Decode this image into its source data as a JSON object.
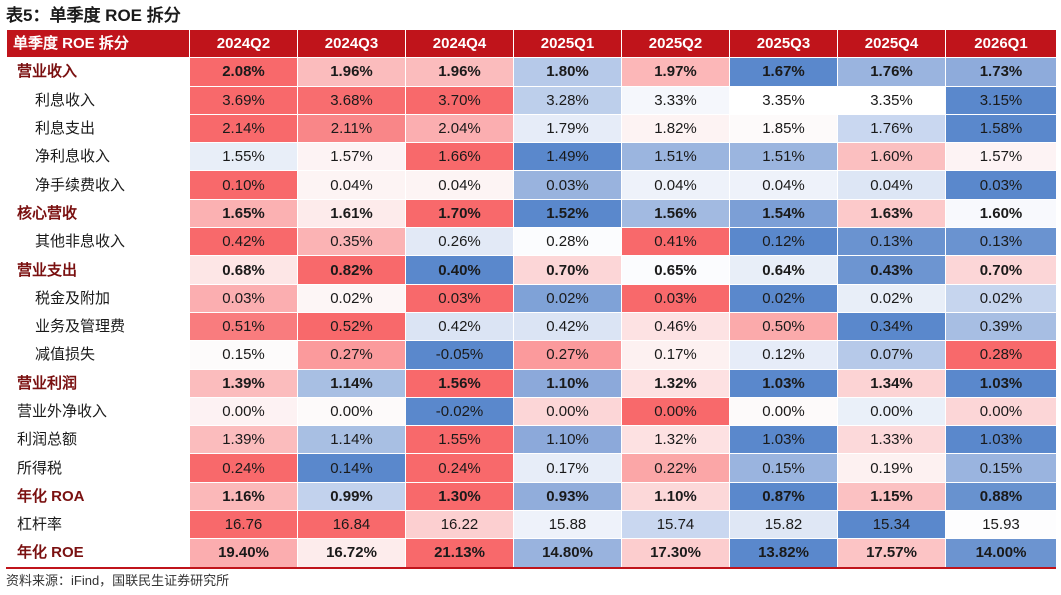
{
  "title": "表5：单季度 ROE 拆分",
  "header": {
    "corner": "单季度 ROE 拆分",
    "periods": [
      "2024Q2",
      "2024Q3",
      "2024Q4",
      "2025Q1",
      "2025Q2",
      "2025Q3",
      "2025Q4",
      "2026Q1"
    ]
  },
  "colors": {
    "header_red": "#c0141b",
    "label_dark_red": "#7a1010"
  },
  "rows": [
    {
      "label": "营业收入",
      "style": "bold",
      "values": [
        "2.08%",
        "1.96%",
        "1.96%",
        "1.80%",
        "1.97%",
        "1.67%",
        "1.76%",
        "1.73%"
      ],
      "colors": [
        "#f8696b",
        "#fbbcbd",
        "#fbbcbd",
        "#b6c9e9",
        "#fcb7b8",
        "#5a88cc",
        "#9ab4df",
        "#8eabdb"
      ]
    },
    {
      "label": "利息收入",
      "style": "sub",
      "values": [
        "3.69%",
        "3.68%",
        "3.70%",
        "3.28%",
        "3.33%",
        "3.35%",
        "3.35%",
        "3.15%"
      ],
      "colors": [
        "#f8696b",
        "#f86d6f",
        "#f8696b",
        "#bdcfeb",
        "#f5f7fc",
        "#ffffff",
        "#ffffff",
        "#5a88cc"
      ]
    },
    {
      "label": "利息支出",
      "style": "sub",
      "values": [
        "2.14%",
        "2.11%",
        "2.04%",
        "1.79%",
        "1.82%",
        "1.85%",
        "1.76%",
        "1.58%"
      ],
      "colors": [
        "#f8696b",
        "#f98688",
        "#fbaeb0",
        "#e6ecf8",
        "#fdf3f3",
        "#fdfafa",
        "#c9d7f0",
        "#5a88cc"
      ]
    },
    {
      "label": "净利息收入",
      "style": "sub",
      "values": [
        "1.55%",
        "1.57%",
        "1.66%",
        "1.49%",
        "1.51%",
        "1.51%",
        "1.60%",
        "1.57%"
      ],
      "colors": [
        "#e8eef8",
        "#fdf3f4",
        "#f8696b",
        "#5a88cc",
        "#9bb5df",
        "#9bb5df",
        "#fbbfc0",
        "#fdf3f4"
      ]
    },
    {
      "label": "净手续费收入",
      "style": "sub",
      "values": [
        "0.10%",
        "0.04%",
        "0.04%",
        "0.03%",
        "0.04%",
        "0.04%",
        "0.04%",
        "0.03%"
      ],
      "colors": [
        "#f8696b",
        "#fdf4f4",
        "#fdf4f4",
        "#99b3de",
        "#eef2fa",
        "#eef2fa",
        "#dde6f5",
        "#5a88cc"
      ]
    },
    {
      "label": "核心营收",
      "style": "bold",
      "values": [
        "1.65%",
        "1.61%",
        "1.70%",
        "1.52%",
        "1.56%",
        "1.54%",
        "1.63%",
        "1.60%"
      ],
      "colors": [
        "#fbb1b2",
        "#fdebeb",
        "#f8696b",
        "#5a88cc",
        "#a2bae1",
        "#7c9fd6",
        "#fcc9ca",
        "#f8f9fd"
      ]
    },
    {
      "label": "其他非息收入",
      "style": "sub",
      "values": [
        "0.42%",
        "0.35%",
        "0.26%",
        "0.28%",
        "0.41%",
        "0.12%",
        "0.13%",
        "0.13%"
      ],
      "colors": [
        "#f8696b",
        "#fbb3b4",
        "#e2e9f6",
        "#fbfcfe",
        "#f8696b",
        "#5a88cc",
        "#6a93d0",
        "#6a93d0"
      ]
    },
    {
      "label": "营业支出",
      "style": "bold",
      "values": [
        "0.68%",
        "0.82%",
        "0.40%",
        "0.70%",
        "0.65%",
        "0.64%",
        "0.43%",
        "0.70%"
      ],
      "colors": [
        "#fde6e6",
        "#f8696b",
        "#5a88cc",
        "#fcd6d7",
        "#fbfcfe",
        "#e8eef8",
        "#6d95d1",
        "#fcd6d7"
      ]
    },
    {
      "label": "税金及附加",
      "style": "sub",
      "values": [
        "0.03%",
        "0.02%",
        "0.03%",
        "0.02%",
        "0.03%",
        "0.02%",
        "0.02%",
        "0.02%"
      ],
      "colors": [
        "#fbaeb0",
        "#fdf6f6",
        "#f8696b",
        "#7fa2d7",
        "#f8696b",
        "#5a88cc",
        "#e8eef8",
        "#c6d5ee"
      ]
    },
    {
      "label": "业务及管理费",
      "style": "sub",
      "values": [
        "0.51%",
        "0.52%",
        "0.42%",
        "0.42%",
        "0.46%",
        "0.50%",
        "0.34%",
        "0.39%"
      ],
      "colors": [
        "#f97c7e",
        "#f8696b",
        "#dbe4f4",
        "#dbe4f4",
        "#fde2e3",
        "#fbaaab",
        "#5a88cc",
        "#a7bee3"
      ]
    },
    {
      "label": "减值损失",
      "style": "sub",
      "values": [
        "0.15%",
        "0.27%",
        "-0.05%",
        "0.27%",
        "0.17%",
        "0.12%",
        "0.07%",
        "0.28%"
      ],
      "colors": [
        "#fdfbfb",
        "#fb9a9c",
        "#5a88cc",
        "#fb9a9c",
        "#fdf1f1",
        "#e6ecf8",
        "#b6c9e9",
        "#f8696b"
      ]
    },
    {
      "label": "营业利润",
      "style": "bold",
      "values": [
        "1.39%",
        "1.14%",
        "1.56%",
        "1.10%",
        "1.32%",
        "1.03%",
        "1.34%",
        "1.03%"
      ],
      "colors": [
        "#fbbcbd",
        "#a8bfe3",
        "#f8696b",
        "#8ca9da",
        "#fde1e2",
        "#5a88cc",
        "#fcd3d4",
        "#5a88cc"
      ]
    },
    {
      "label": "营业外净收入",
      "style": "sub-plain",
      "values": [
        "0.00%",
        "0.00%",
        "-0.02%",
        "0.00%",
        "0.00%",
        "0.00%",
        "0.00%",
        "0.00%"
      ],
      "colors": [
        "#fdf2f3",
        "#fdfafa",
        "#5a88cc",
        "#fcd6d7",
        "#f8696b",
        "#fdfafa",
        "#eaf0f9",
        "#fcd6d7"
      ]
    },
    {
      "label": "利润总额",
      "style": "sub-plain",
      "values": [
        "1.39%",
        "1.14%",
        "1.55%",
        "1.10%",
        "1.32%",
        "1.03%",
        "1.33%",
        "1.03%"
      ],
      "colors": [
        "#fbbcbd",
        "#a8bfe3",
        "#f8696b",
        "#8ca9da",
        "#fde1e2",
        "#5a88cc",
        "#fcd9da",
        "#5a88cc"
      ]
    },
    {
      "label": "所得税",
      "style": "sub-plain",
      "values": [
        "0.24%",
        "0.14%",
        "0.24%",
        "0.17%",
        "0.22%",
        "0.15%",
        "0.19%",
        "0.15%"
      ],
      "colors": [
        "#f8696b",
        "#5a88cc",
        "#f8696b",
        "#e7edf8",
        "#fba6a7",
        "#9ab4df",
        "#fdf1f1",
        "#9ab4df"
      ]
    },
    {
      "label": "年化 ROA",
      "style": "bold",
      "values": [
        "1.16%",
        "0.99%",
        "1.30%",
        "0.93%",
        "1.10%",
        "0.87%",
        "1.15%",
        "0.88%"
      ],
      "colors": [
        "#fbb8b9",
        "#c2d2ed",
        "#f8696b",
        "#91addb",
        "#fcd8d9",
        "#5a88cc",
        "#fbc1c2",
        "#6892cf"
      ]
    },
    {
      "label": "杠杆率",
      "style": "sub-plain",
      "values": [
        "16.76",
        "16.84",
        "16.22",
        "15.88",
        "15.74",
        "15.82",
        "15.34",
        "15.93"
      ],
      "colors": [
        "#f8696b",
        "#f8696b",
        "#fccfd0",
        "#eef2fa",
        "#c9d7f0",
        "#dfe7f5",
        "#5a88cc",
        "#fdfdfe"
      ]
    },
    {
      "label": "年化 ROE",
      "style": "bold",
      "values": [
        "19.40%",
        "16.72%",
        "21.13%",
        "14.80%",
        "17.30%",
        "13.82%",
        "17.57%",
        "14.00%"
      ],
      "colors": [
        "#fbadaf",
        "#fdecec",
        "#f8696b",
        "#99b3de",
        "#fccdce",
        "#5a88cc",
        "#fcc4c5",
        "#6c94d0"
      ]
    }
  ],
  "source": "资料来源：iFind，国联民生证券研究所"
}
